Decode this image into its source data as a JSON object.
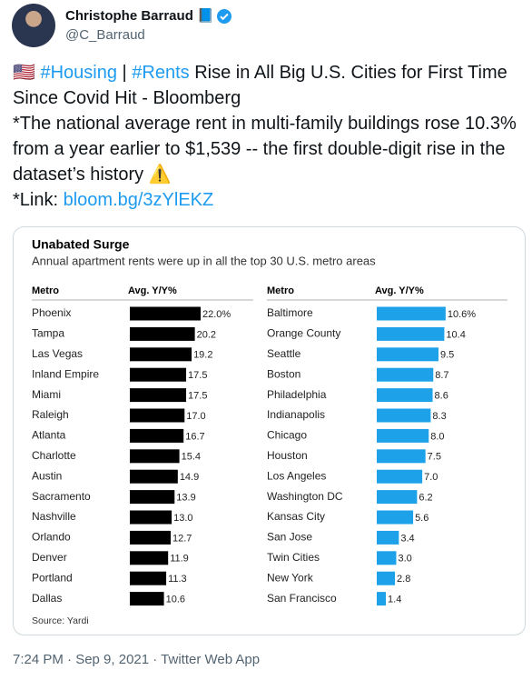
{
  "tweet": {
    "author": "Christophe Barraud 📘",
    "handle": "@C_Barraud",
    "paragraphs": [
      [
        "🇺🇸 ",
        "#Housing",
        " | ",
        "#Rents",
        " Rise in All Big U.S. Cities for First Time Since Covid Hit - Bloomberg"
      ],
      [
        "*The national average rent in multi-family buildings rose 10.3% from a year earlier to $1,539 -- the first double-digit rise in the dataset’s history ⚠️"
      ],
      [
        "*Link: ",
        "bloom.bg/3zYlEKZ"
      ]
    ],
    "timestamp": "7:24 PM · Sep 9, 2021 · Twitter Web App"
  },
  "chart_data": {
    "type": "bar",
    "title": "Unabated Surge",
    "subtitle": "Annual apartment rents were up in all the top 30 U.S. metro areas",
    "source": "Source: Yardi",
    "panels": [
      {
        "category_header": "Metro",
        "value_header": "Avg. Y/Y%",
        "color": "#000000",
        "xlim": [
          0,
          22
        ],
        "categories": [
          "Phoenix",
          "Tampa",
          "Las Vegas",
          "Inland Empire",
          "Miami",
          "Raleigh",
          "Atlanta",
          "Charlotte",
          "Austin",
          "Sacramento",
          "Nashville",
          "Orlando",
          "Denver",
          "Portland",
          "Dallas"
        ],
        "values": [
          22.0,
          20.2,
          19.2,
          17.5,
          17.5,
          17.0,
          16.7,
          15.4,
          14.9,
          13.9,
          13.0,
          12.7,
          11.9,
          11.3,
          10.6
        ],
        "value_labels": [
          "22.0%",
          "20.2",
          "19.2",
          "17.5",
          "17.5",
          "17.0",
          "16.7",
          "15.4",
          "14.9",
          "13.9",
          "13.0",
          "12.7",
          "11.9",
          "11.3",
          "10.6"
        ]
      },
      {
        "category_header": "Metro",
        "value_header": "Avg. Y/Y%",
        "color": "#1da1e8",
        "xlim": [
          0,
          10.9
        ],
        "categories": [
          "Baltimore",
          "Orange County",
          "Seattle",
          "Boston",
          "Philadelphia",
          "Indianapolis",
          "Chicago",
          "Houston",
          "Los Angeles",
          "Washington DC",
          "Kansas City",
          "San Jose",
          "Twin Cities",
          "New York",
          "San Francisco"
        ],
        "values": [
          10.6,
          10.4,
          9.5,
          8.7,
          8.6,
          8.3,
          8.0,
          7.5,
          7.0,
          6.2,
          5.6,
          3.4,
          3.0,
          2.8,
          1.4
        ],
        "value_labels": [
          "10.6%",
          "10.4",
          "9.5",
          "8.7",
          "8.6",
          "8.3",
          "8.0",
          "7.5",
          "7.0",
          "6.2",
          "5.6",
          "3.4",
          "3.0",
          "2.8",
          "1.4"
        ]
      }
    ]
  }
}
